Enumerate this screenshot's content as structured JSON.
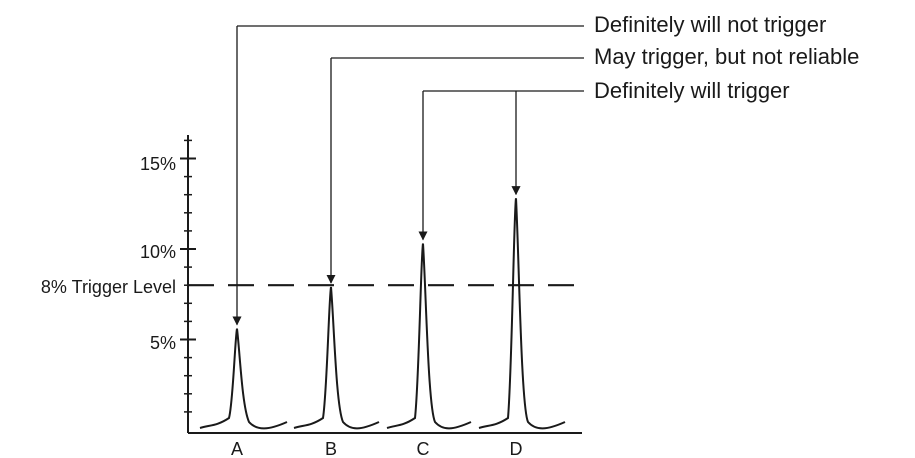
{
  "y_axis": {
    "unit": "%",
    "ticks": [
      {
        "value": 15,
        "label": "15%"
      },
      {
        "value": 10,
        "label": "10%"
      },
      {
        "value": 5,
        "label": "5%"
      }
    ],
    "minor_step": 1,
    "range": [
      0,
      17
    ]
  },
  "trigger": {
    "value": 8,
    "label": "8% Trigger Level",
    "style": "dashed"
  },
  "peaks": [
    {
      "label": "A",
      "value": 5.6
    },
    {
      "label": "B",
      "value": 7.9
    },
    {
      "label": "C",
      "value": 10.3
    },
    {
      "label": "D",
      "value": 12.8
    }
  ],
  "annotations": [
    {
      "text": "Definitely will not trigger",
      "targets": [
        "A"
      ]
    },
    {
      "text": "May trigger, but not reliable",
      "targets": [
        "B"
      ]
    },
    {
      "text": "Definitely will trigger",
      "targets": [
        "C",
        "D"
      ]
    }
  ],
  "colors": {
    "ink": "#1a1a1a",
    "background": "#ffffff"
  }
}
